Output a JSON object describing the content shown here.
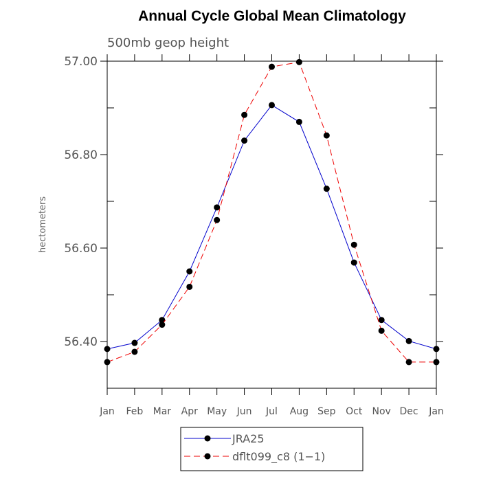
{
  "chart_data": {
    "type": "line",
    "title": "Annual Cycle Global Mean Climatology",
    "subtitle": "500mb geop height",
    "ylabel": "hectometers",
    "xlabel": "",
    "categories": [
      "Jan",
      "Feb",
      "Mar",
      "Apr",
      "May",
      "Jun",
      "Jul",
      "Aug",
      "Sep",
      "Oct",
      "Nov",
      "Dec",
      "Jan"
    ],
    "ylim": [
      56.3,
      57.0
    ],
    "yticks_major": [
      56.4,
      56.6,
      56.8,
      57.0
    ],
    "ytick_labels": [
      "56.40",
      "56.60",
      "56.80",
      "57.00"
    ],
    "yticks_minor": [
      56.3,
      56.5,
      56.7,
      56.9
    ],
    "grid": false,
    "legend_position": "bottom",
    "series": [
      {
        "name": "JRA25",
        "color": "#0000cc",
        "dash": "solid",
        "marker": "filled-circle",
        "values": [
          56.384,
          56.397,
          56.446,
          56.55,
          56.687,
          56.83,
          56.906,
          56.87,
          56.727,
          56.569,
          56.446,
          56.401,
          56.384
        ]
      },
      {
        "name": "dflt099_c8 (1−1)",
        "color": "#ee0000",
        "dash": "dashed",
        "marker": "filled-circle",
        "values": [
          56.356,
          56.378,
          56.436,
          56.517,
          56.66,
          56.885,
          56.988,
          56.998,
          56.841,
          56.607,
          56.423,
          56.356,
          56.356
        ]
      }
    ]
  }
}
